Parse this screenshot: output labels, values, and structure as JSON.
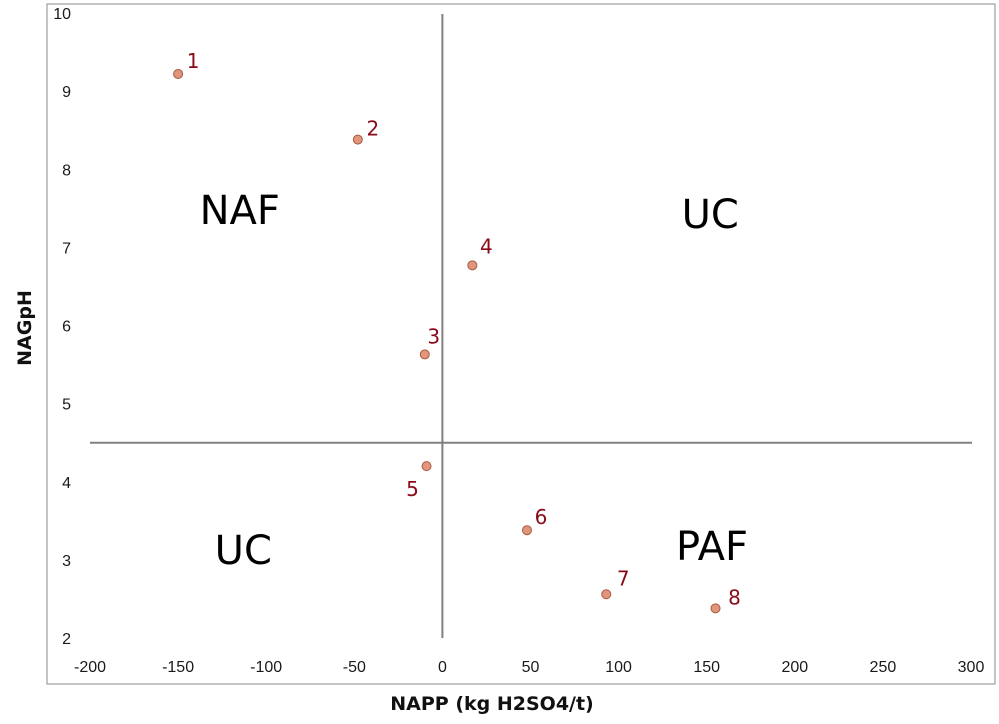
{
  "chart_data": {
    "type": "scatter",
    "title": "",
    "xlabel": "NAPP (kg H2SO4/t)",
    "ylabel": "NAGpH",
    "xlim": [
      -200,
      300
    ],
    "ylim": [
      2,
      10
    ],
    "x_ticks": [
      "-200",
      "-150",
      "-100",
      "-50",
      "0",
      "50",
      "100",
      "150",
      "200",
      "250",
      "300"
    ],
    "y_ticks": [
      "2",
      "3",
      "4",
      "5",
      "6",
      "7",
      "8",
      "9",
      "10"
    ],
    "grid": false,
    "legend": "none",
    "divider_x": 0,
    "divider_y": 4.5,
    "points": [
      {
        "label": "1",
        "x": -150,
        "y": 9.22
      },
      {
        "label": "2",
        "x": -48,
        "y": 8.38
      },
      {
        "label": "3",
        "x": -10,
        "y": 5.63
      },
      {
        "label": "4",
        "x": 17,
        "y": 6.77
      },
      {
        "label": "5",
        "x": -9,
        "y": 4.2
      },
      {
        "label": "6",
        "x": 48,
        "y": 3.38
      },
      {
        "label": "7",
        "x": 93,
        "y": 2.56
      },
      {
        "label": "8",
        "x": 155,
        "y": 2.38
      }
    ],
    "regions": [
      {
        "text": "NAF",
        "x": -115,
        "y": 7.3
      },
      {
        "text": "UC",
        "x": 152,
        "y": 7.25
      },
      {
        "text": "UC",
        "x": -113,
        "y": 2.95
      },
      {
        "text": "PAF",
        "x": 153,
        "y": 3.0
      }
    ]
  },
  "colors": {
    "point_fill": "#e0957c",
    "point_stroke": "#a85a3f",
    "point_label": "#8b0a1a",
    "divider": "#808080",
    "border": "#8a8a8a"
  }
}
